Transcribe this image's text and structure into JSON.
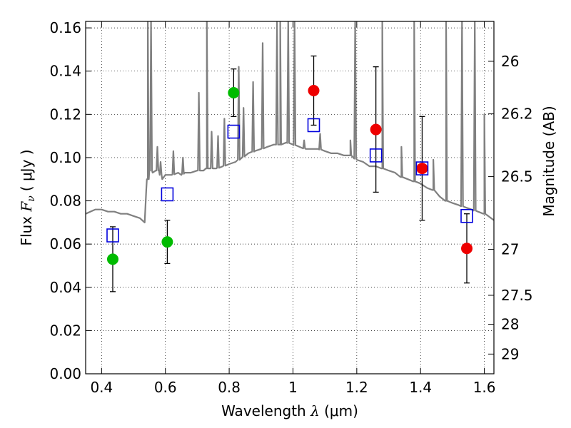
{
  "chart_data": {
    "type": "scatter",
    "xlabel": {
      "prefix": "Wavelength ",
      "symbol": "λ",
      "unit": " (μm)"
    },
    "ylabel": {
      "prefix": "Flux ",
      "symbol": "F",
      "sub": "ν",
      "unit": "( μJy )"
    },
    "y2label": "Magnitude (AB)",
    "xlim": [
      0.35,
      1.63
    ],
    "ylim": [
      0.0,
      0.163
    ],
    "grid": true,
    "x_ticks": [
      {
        "value": 0.4,
        "label": "0.4"
      },
      {
        "value": 0.6,
        "label": "0.6"
      },
      {
        "value": 0.8,
        "label": "0.8"
      },
      {
        "value": 1.0,
        "label": "1"
      },
      {
        "value": 1.2,
        "label": "1.2"
      },
      {
        "value": 1.4,
        "label": "1.4"
      },
      {
        "value": 1.6,
        "label": "1.6"
      }
    ],
    "y_ticks": [
      {
        "value": 0.0,
        "label": "0.00"
      },
      {
        "value": 0.02,
        "label": "0.02"
      },
      {
        "value": 0.04,
        "label": "0.04"
      },
      {
        "value": 0.06,
        "label": "0.06"
      },
      {
        "value": 0.08,
        "label": "0.08"
      },
      {
        "value": 0.1,
        "label": "0.10"
      },
      {
        "value": 0.12,
        "label": "0.12"
      },
      {
        "value": 0.14,
        "label": "0.14"
      },
      {
        "value": 0.16,
        "label": "0.16"
      }
    ],
    "y2_ticks": [
      {
        "value": 26,
        "label": "26"
      },
      {
        "value": 26.2,
        "label": "26.2"
      },
      {
        "value": 26.5,
        "label": "26.5"
      },
      {
        "value": 27,
        "label": "27"
      },
      {
        "value": 27.5,
        "label": "27.5"
      },
      {
        "value": 28,
        "label": "28"
      },
      {
        "value": 29,
        "label": "29"
      }
    ],
    "model_spectrum": {
      "color": "#808080",
      "x": [
        0.35,
        0.38,
        0.4,
        0.42,
        0.44,
        0.46,
        0.48,
        0.5,
        0.52,
        0.535,
        0.54,
        0.545,
        0.55,
        0.56,
        0.57,
        0.58,
        0.59,
        0.6,
        0.62,
        0.64,
        0.65,
        0.66,
        0.68,
        0.7,
        0.72,
        0.73,
        0.74,
        0.76,
        0.78,
        0.8,
        0.82,
        0.84,
        0.86,
        0.88,
        0.9,
        0.92,
        0.94,
        0.96,
        0.98,
        1.0,
        1.02,
        1.04,
        1.06,
        1.08,
        1.1,
        1.12,
        1.14,
        1.16,
        1.18,
        1.2,
        1.22,
        1.24,
        1.26,
        1.28,
        1.3,
        1.32,
        1.34,
        1.36,
        1.38,
        1.4,
        1.42,
        1.44,
        1.46,
        1.48,
        1.5,
        1.52,
        1.54,
        1.56,
        1.58,
        1.6,
        1.63
      ],
      "y": [
        0.074,
        0.076,
        0.076,
        0.075,
        0.075,
        0.074,
        0.074,
        0.073,
        0.072,
        0.07,
        0.085,
        0.09,
        0.095,
        0.093,
        0.094,
        0.094,
        0.09,
        0.092,
        0.092,
        0.093,
        0.092,
        0.093,
        0.093,
        0.094,
        0.094,
        0.095,
        0.095,
        0.095,
        0.096,
        0.097,
        0.098,
        0.1,
        0.102,
        0.103,
        0.104,
        0.105,
        0.106,
        0.106,
        0.107,
        0.106,
        0.105,
        0.104,
        0.104,
        0.104,
        0.103,
        0.102,
        0.102,
        0.101,
        0.101,
        0.099,
        0.098,
        0.096,
        0.096,
        0.095,
        0.094,
        0.093,
        0.091,
        0.09,
        0.089,
        0.088,
        0.086,
        0.085,
        0.082,
        0.08,
        0.079,
        0.078,
        0.077,
        0.076,
        0.075,
        0.074,
        0.071
      ],
      "spikes": [
        {
          "x": 0.545,
          "peak": 0.163
        },
        {
          "x": 0.555,
          "peak": 0.163
        },
        {
          "x": 0.575,
          "peak": 0.105
        },
        {
          "x": 0.585,
          "peak": 0.098
        },
        {
          "x": 0.625,
          "peak": 0.103
        },
        {
          "x": 0.655,
          "peak": 0.1
        },
        {
          "x": 0.705,
          "peak": 0.13
        },
        {
          "x": 0.73,
          "peak": 0.163
        },
        {
          "x": 0.745,
          "peak": 0.112
        },
        {
          "x": 0.765,
          "peak": 0.11
        },
        {
          "x": 0.785,
          "peak": 0.118
        },
        {
          "x": 0.83,
          "peak": 0.142
        },
        {
          "x": 0.845,
          "peak": 0.123
        },
        {
          "x": 0.875,
          "peak": 0.135
        },
        {
          "x": 0.905,
          "peak": 0.153
        },
        {
          "x": 0.95,
          "peak": 0.163
        },
        {
          "x": 0.96,
          "peak": 0.163
        },
        {
          "x": 0.985,
          "peak": 0.163
        },
        {
          "x": 1.005,
          "peak": 0.163
        },
        {
          "x": 1.035,
          "peak": 0.108
        },
        {
          "x": 1.085,
          "peak": 0.111
        },
        {
          "x": 1.18,
          "peak": 0.108
        },
        {
          "x": 1.195,
          "peak": 0.163
        },
        {
          "x": 1.28,
          "peak": 0.163
        },
        {
          "x": 1.34,
          "peak": 0.105
        },
        {
          "x": 1.38,
          "peak": 0.163
        },
        {
          "x": 1.44,
          "peak": 0.099
        },
        {
          "x": 1.48,
          "peak": 0.163
        },
        {
          "x": 1.53,
          "peak": 0.163
        },
        {
          "x": 1.57,
          "peak": 0.163
        },
        {
          "x": 1.6,
          "peak": 0.12
        }
      ]
    },
    "series": [
      {
        "marker": "filled-circle",
        "color": "#00bb00",
        "points": [
          {
            "x": 0.435,
            "y": 0.053,
            "err": 0.015
          },
          {
            "x": 0.606,
            "y": 0.061,
            "err": 0.01
          },
          {
            "x": 0.814,
            "y": 0.13,
            "err": 0.011
          }
        ]
      },
      {
        "marker": "filled-circle",
        "color": "#ee0000",
        "points": [
          {
            "x": 1.065,
            "y": 0.131,
            "err": 0.016
          },
          {
            "x": 1.26,
            "y": 0.113,
            "err": 0.029
          },
          {
            "x": 1.405,
            "y": 0.095,
            "err": 0.024
          },
          {
            "x": 1.545,
            "y": 0.058,
            "err": 0.016
          }
        ]
      },
      {
        "marker": "open-square",
        "color": "#0000dd",
        "points": [
          {
            "x": 0.435,
            "y": 0.064
          },
          {
            "x": 0.606,
            "y": 0.083
          },
          {
            "x": 0.814,
            "y": 0.112
          },
          {
            "x": 1.065,
            "y": 0.115
          },
          {
            "x": 1.26,
            "y": 0.101
          },
          {
            "x": 1.405,
            "y": 0.095
          },
          {
            "x": 1.545,
            "y": 0.073
          }
        ]
      }
    ]
  }
}
